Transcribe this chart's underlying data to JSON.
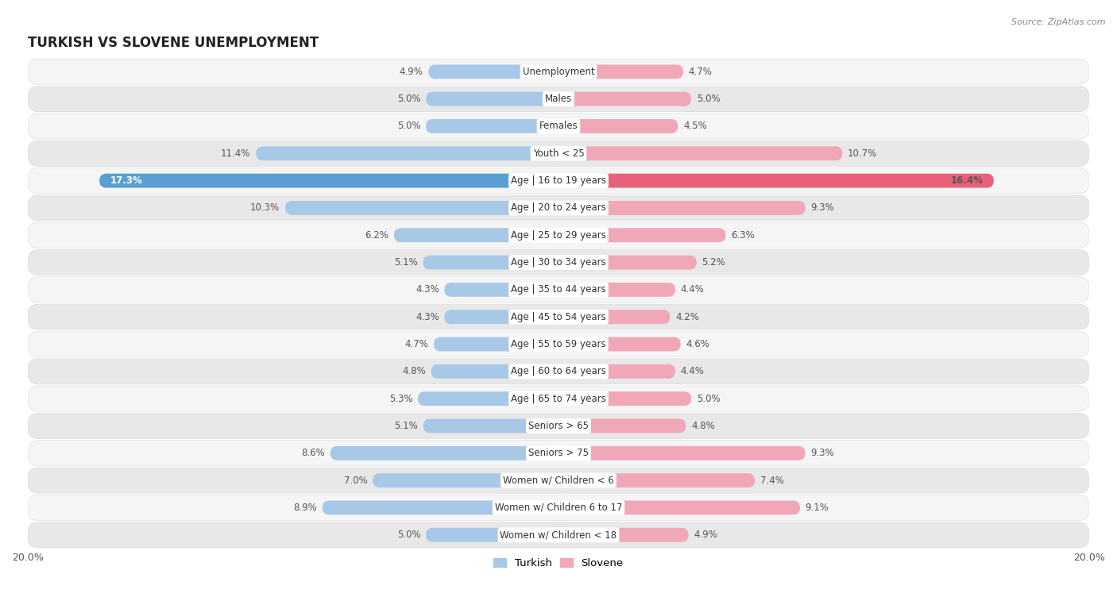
{
  "title": "TURKISH VS SLOVENE UNEMPLOYMENT",
  "source": "Source: ZipAtlas.com",
  "categories": [
    "Unemployment",
    "Males",
    "Females",
    "Youth < 25",
    "Age | 16 to 19 years",
    "Age | 20 to 24 years",
    "Age | 25 to 29 years",
    "Age | 30 to 34 years",
    "Age | 35 to 44 years",
    "Age | 45 to 54 years",
    "Age | 55 to 59 years",
    "Age | 60 to 64 years",
    "Age | 65 to 74 years",
    "Seniors > 65",
    "Seniors > 75",
    "Women w/ Children < 6",
    "Women w/ Children 6 to 17",
    "Women w/ Children < 18"
  ],
  "turkish_values": [
    4.9,
    5.0,
    5.0,
    11.4,
    17.3,
    10.3,
    6.2,
    5.1,
    4.3,
    4.3,
    4.7,
    4.8,
    5.3,
    5.1,
    8.6,
    7.0,
    8.9,
    5.0
  ],
  "slovene_values": [
    4.7,
    5.0,
    4.5,
    10.7,
    16.4,
    9.3,
    6.3,
    5.2,
    4.4,
    4.2,
    4.6,
    4.4,
    5.0,
    4.8,
    9.3,
    7.4,
    9.1,
    4.9
  ],
  "turkish_color": "#a8c8e8",
  "slovene_color": "#f0a8b8",
  "turkish_highlight_color": "#5a9fd4",
  "slovene_highlight_color": "#e8607a",
  "axis_max": 20.0,
  "page_bg": "#ffffff",
  "row_bg_light": "#f5f5f5",
  "row_bg_dark": "#e8e8e8",
  "row_border": "#d0d0d0",
  "label_fontsize": 8.5,
  "value_fontsize": 8.5,
  "title_fontsize": 12,
  "source_fontsize": 8,
  "legend_labels": [
    "Turkish",
    "Slovene"
  ],
  "highlight_row_index": 4,
  "label_color_normal": "#555555",
  "label_color_highlight_turkish": "#ffffff",
  "label_color_highlight_slovene": "#ffffff"
}
